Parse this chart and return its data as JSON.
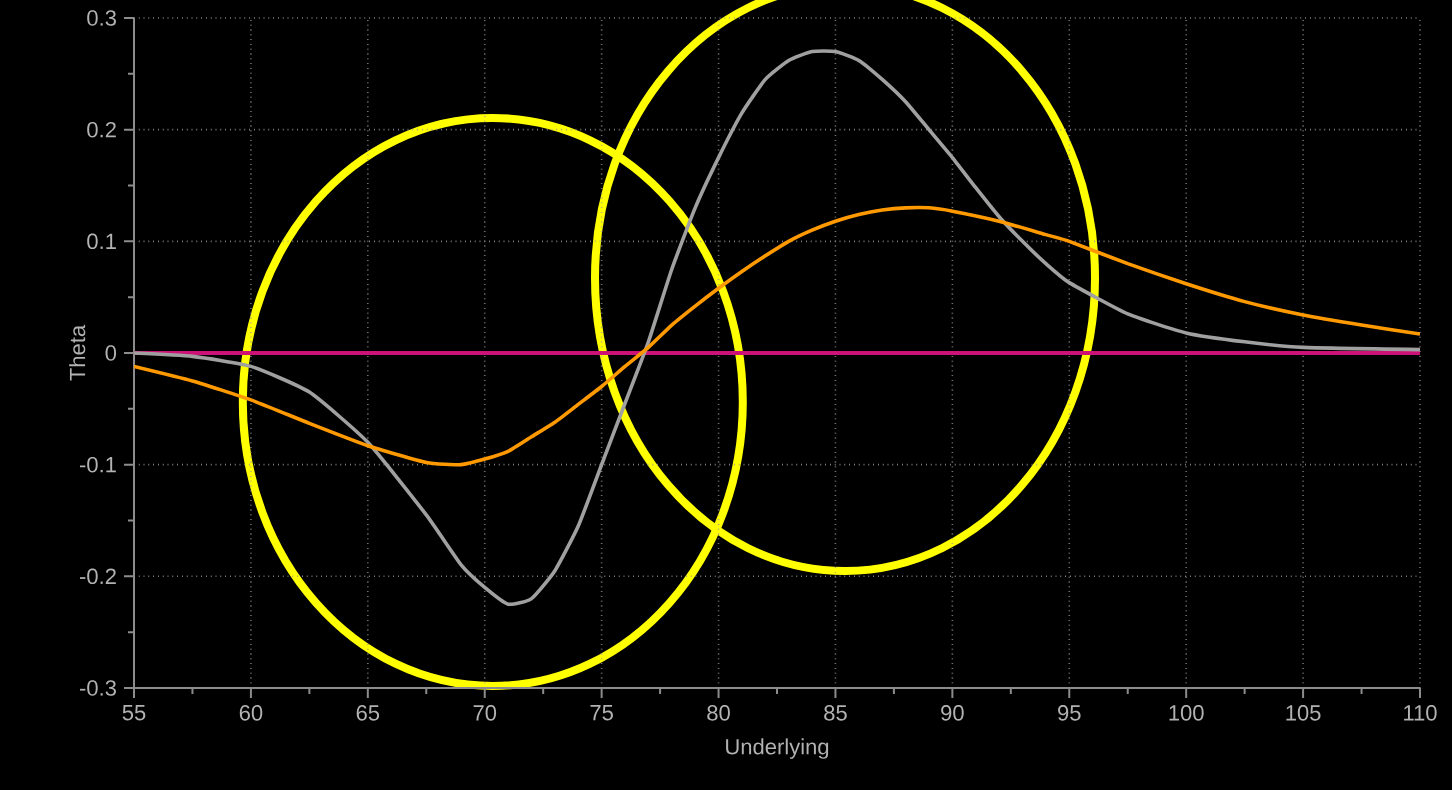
{
  "chart_data": {
    "type": "line",
    "xlabel": "Underlying",
    "ylabel": "Theta",
    "xlim": [
      55,
      110
    ],
    "ylim": [
      -0.3,
      0.3
    ],
    "xticks": [
      55,
      60,
      65,
      70,
      75,
      80,
      85,
      90,
      95,
      100,
      105,
      110
    ],
    "yticks": [
      -0.3,
      -0.2,
      -0.1,
      0,
      0.1,
      0.2,
      0.3
    ],
    "grid": true,
    "marker": "none",
    "line_style": "solid",
    "ref_lines": [
      {
        "axis": "y",
        "value": 0,
        "color": "#cc1177"
      }
    ],
    "series": [
      {
        "color": "#a0a0a0",
        "x": [
          55,
          57.5,
          60,
          62.5,
          65,
          67.5,
          69,
          70,
          71,
          72,
          73,
          74,
          75,
          76,
          77,
          78,
          79,
          80,
          81,
          82,
          83,
          84,
          85,
          86,
          87,
          88,
          89,
          90,
          91,
          92,
          93,
          94,
          95,
          97.5,
          100,
          102.5,
          105,
          110
        ],
        "values": [
          0,
          -0.003,
          -0.012,
          -0.035,
          -0.08,
          -0.145,
          -0.19,
          -0.21,
          -0.225,
          -0.22,
          -0.195,
          -0.155,
          -0.1,
          -0.045,
          0.01,
          0.075,
          0.13,
          0.175,
          0.215,
          0.245,
          0.262,
          0.27,
          0.27,
          0.262,
          0.245,
          0.225,
          0.2,
          0.175,
          0.148,
          0.122,
          0.1,
          0.08,
          0.063,
          0.035,
          0.018,
          0.01,
          0.005,
          0.003
        ]
      },
      {
        "color": "#ff9900",
        "x": [
          55,
          57.5,
          60,
          62.5,
          65,
          67.5,
          69,
          70,
          71,
          72,
          73,
          74,
          75,
          76,
          77,
          78,
          79,
          80,
          81,
          82,
          83,
          84,
          85,
          86,
          87,
          88,
          89,
          90,
          92,
          94,
          95,
          97.5,
          100,
          102.5,
          105,
          107.5,
          110
        ],
        "values": [
          -0.012,
          -0.025,
          -0.042,
          -0.063,
          -0.083,
          -0.098,
          -0.1,
          -0.095,
          -0.088,
          -0.075,
          -0.062,
          -0.046,
          -0.03,
          -0.012,
          0.005,
          0.025,
          0.042,
          0.058,
          0.073,
          0.087,
          0.1,
          0.11,
          0.118,
          0.124,
          0.128,
          0.13,
          0.13,
          0.127,
          0.118,
          0.106,
          0.1,
          0.08,
          0.062,
          0.046,
          0.034,
          0.025,
          0.017
        ]
      }
    ]
  }
}
